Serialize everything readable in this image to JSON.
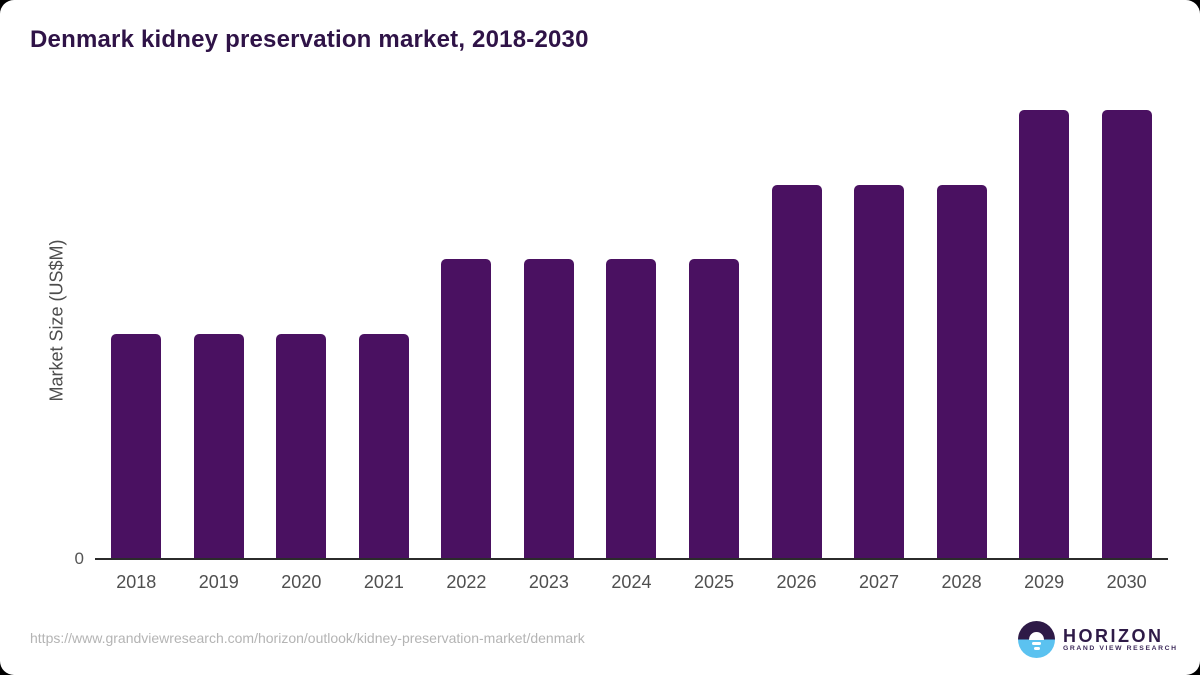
{
  "title": "Denmark kidney preservation market, 2018-2030",
  "colors": {
    "bar": "#4a1161",
    "title_text": "#2f1347",
    "axis_text": "#4f4f4f",
    "axis_line": "#2b2b2b",
    "url_text": "#b4b4b4",
    "logo_dark": "#2e1a47",
    "logo_blue": "#5bc2f0"
  },
  "chart_data": {
    "type": "bar",
    "title": "Denmark kidney preservation market, 2018-2030",
    "categories": [
      "2018",
      "2019",
      "2020",
      "2021",
      "2022",
      "2023",
      "2024",
      "2025",
      "2026",
      "2027",
      "2028",
      "2029",
      "2030"
    ],
    "values": [
      3,
      3,
      3,
      3,
      4,
      4,
      4,
      4,
      5,
      5,
      5,
      6,
      6
    ],
    "units": "relative units (y-axis unlabeled except 0); bar heights estimated from pixels",
    "xlabel": "",
    "ylabel": "Market Size (US$M)",
    "y_tick_labels": [
      "0"
    ],
    "ylim": [
      0,
      6.5
    ],
    "grid": false,
    "legend": false,
    "bar_color": "#4a1161"
  },
  "axis": {
    "zero_label": "0",
    "y_label": "Market Size (US$M)"
  },
  "footer": {
    "url": "https://www.grandviewresearch.com/horizon/outlook/kidney-preservation-market/denmark",
    "logo_name": "HORIZON",
    "logo_subtext": "GRAND VIEW RESEARCH"
  }
}
